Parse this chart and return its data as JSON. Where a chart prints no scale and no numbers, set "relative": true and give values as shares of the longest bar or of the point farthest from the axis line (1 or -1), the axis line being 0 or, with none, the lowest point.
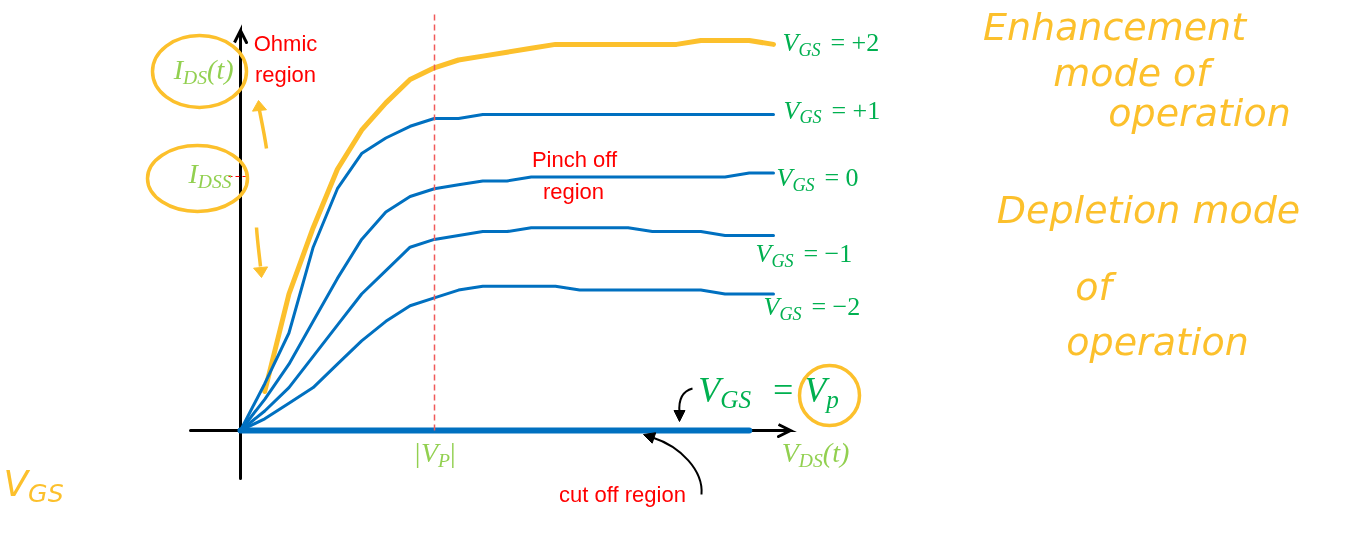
{
  "chart_data": {
    "type": "line",
    "relative": true,
    "xlabel": "V$_{DS}$(t)",
    "ylabel": "I$_{DS}$(t)",
    "categories": [
      null,
      null,
      null,
      null,
      null,
      null,
      null,
      null,
      null,
      null,
      null,
      null,
      null,
      null,
      null,
      null,
      null,
      null,
      null,
      null,
      null,
      null,
      null
    ],
    "marker": "none",
    "line_style": "solid",
    "series": [
      {
        "name": "V$_{GS}$ = +2",
        "color": "#fcc02c",
        "values": [
          null,
          0.1,
          0.35,
          0.52,
          0.67,
          0.77,
          0.84,
          0.9,
          0.93,
          0.95,
          0.96,
          0.97,
          0.98,
          0.99,
          0.99,
          0.99,
          0.99,
          0.99,
          0.99,
          1.0,
          1.0,
          1.0,
          0.99
        ]
      },
      {
        "name": "V$_{GS}$ = +1",
        "color": "#0070c0",
        "values": [
          0,
          0.12,
          0.25,
          0.47,
          0.62,
          0.71,
          0.75,
          0.78,
          0.8,
          0.8,
          0.81,
          0.81,
          0.81,
          0.81,
          0.81,
          0.81,
          0.81,
          0.81,
          0.81,
          0.81,
          0.81,
          0.81,
          0.81
        ]
      },
      {
        "name": "V$_{GS}$ = 0",
        "color": "#0070c0",
        "values": [
          0,
          0.08,
          0.17,
          0.28,
          0.39,
          0.49,
          0.56,
          0.6,
          0.62,
          0.63,
          0.64,
          0.64,
          0.65,
          0.65,
          0.65,
          0.65,
          0.65,
          0.65,
          0.65,
          0.65,
          0.65,
          0.66,
          0.66
        ]
      },
      {
        "name": "V$_{GS}$ = −1",
        "color": "#0070c0",
        "values": [
          0,
          0.05,
          0.11,
          0.19,
          0.27,
          0.35,
          0.41,
          0.47,
          0.49,
          0.5,
          0.51,
          0.51,
          0.52,
          0.52,
          0.52,
          0.52,
          0.52,
          0.51,
          0.51,
          0.51,
          0.5,
          0.5,
          0.5
        ]
      },
      {
        "name": "V$_{GS}$ = −2",
        "color": "#0070c0",
        "values": [
          0,
          0.03,
          0.07,
          0.11,
          0.17,
          0.23,
          0.28,
          0.32,
          0.34,
          0.36,
          0.37,
          0.37,
          0.37,
          0.37,
          0.36,
          0.36,
          0.36,
          0.36,
          0.36,
          0.36,
          0.35,
          0.35,
          0.35
        ]
      },
      {
        "name": "V$_{GS}$ = V$_{p}$",
        "color": "#0070c0",
        "values": [
          0,
          0,
          0,
          0,
          0,
          0,
          0,
          0,
          0,
          0,
          0,
          0,
          0,
          0,
          0,
          0,
          0,
          0,
          0,
          0,
          0,
          0,
          null
        ]
      }
    ],
    "annotations": [
      "I$_{DSS}$",
      "|V$_{P}$|",
      "Ohmic\nregion",
      "Pinch off\nregion",
      "cut off region",
      "Enhancement\nmode of\noperation",
      "Depletion mode\nof\noperation",
      "V$_{GS}$"
    ]
  }
}
